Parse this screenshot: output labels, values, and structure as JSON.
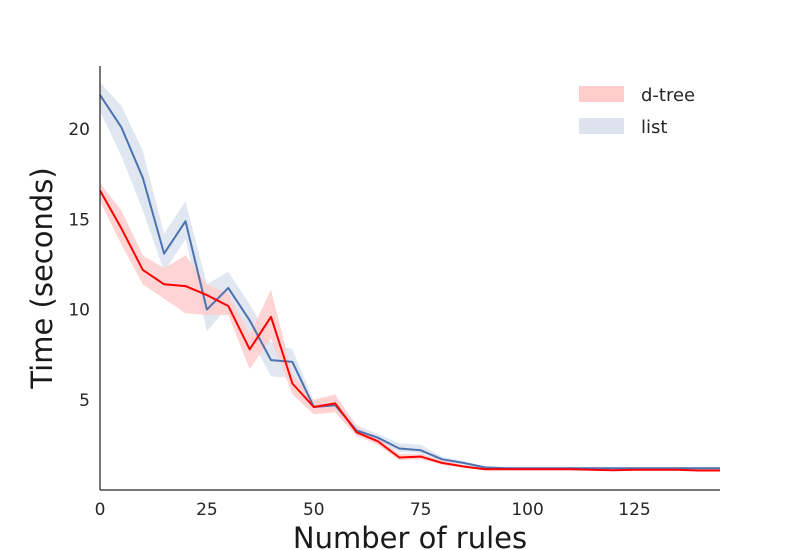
{
  "chart_data": {
    "type": "line",
    "xlabel": "Number of rules",
    "ylabel": "Time (seconds)",
    "xlim": [
      0,
      145
    ],
    "ylim": [
      0,
      23.5
    ],
    "xticks": [
      0,
      25,
      50,
      75,
      100,
      125
    ],
    "yticks": [
      5,
      10,
      15,
      20
    ],
    "legend_position": "top-right",
    "grid": false,
    "x": [
      0,
      5,
      10,
      15,
      20,
      25,
      30,
      35,
      40,
      45,
      50,
      55,
      60,
      65,
      70,
      75,
      80,
      85,
      90,
      95,
      100,
      105,
      110,
      115,
      120,
      125,
      130,
      135,
      140,
      145
    ],
    "series": [
      {
        "name": "d-tree",
        "color": "#ff0000",
        "band_color": "#ffcccc",
        "values": [
          16.6,
          14.5,
          12.2,
          11.4,
          11.3,
          10.8,
          10.2,
          7.8,
          9.6,
          5.9,
          4.6,
          4.8,
          3.2,
          2.7,
          1.8,
          1.85,
          1.5,
          1.3,
          1.15,
          1.15,
          1.15,
          1.15,
          1.15,
          1.12,
          1.1,
          1.12,
          1.12,
          1.12,
          1.08,
          1.08
        ],
        "lower": [
          16.0,
          13.6,
          11.4,
          10.6,
          9.8,
          9.7,
          9.7,
          6.7,
          8.4,
          5.3,
          4.2,
          4.3,
          3.0,
          2.5,
          1.65,
          1.7,
          1.4,
          1.25,
          1.1,
          1.1,
          1.1,
          1.1,
          1.1,
          1.08,
          1.05,
          1.07,
          1.07,
          1.07,
          1.03,
          1.03
        ],
        "upper": [
          17.0,
          15.5,
          13.0,
          12.3,
          13.0,
          11.4,
          10.9,
          8.6,
          11.1,
          6.4,
          5.0,
          5.3,
          3.5,
          2.9,
          2.0,
          2.0,
          1.65,
          1.4,
          1.25,
          1.2,
          1.2,
          1.2,
          1.2,
          1.17,
          1.15,
          1.17,
          1.17,
          1.17,
          1.13,
          1.13
        ]
      },
      {
        "name": "list",
        "color": "#4c72b0",
        "band_color": "#dce3ef",
        "values": [
          21.9,
          20.1,
          17.3,
          13.1,
          14.9,
          10.0,
          11.2,
          9.4,
          7.2,
          7.1,
          4.6,
          4.7,
          3.3,
          2.9,
          2.3,
          2.2,
          1.7,
          1.5,
          1.25,
          1.2,
          1.2,
          1.2,
          1.2,
          1.2,
          1.2,
          1.2,
          1.2,
          1.2,
          1.2,
          1.2
        ],
        "lower": [
          21.0,
          18.5,
          15.5,
          12.1,
          13.9,
          8.8,
          10.2,
          8.5,
          6.3,
          6.2,
          4.3,
          4.4,
          3.0,
          2.7,
          2.1,
          2.05,
          1.6,
          1.42,
          1.18,
          1.15,
          1.15,
          1.15,
          1.15,
          1.15,
          1.15,
          1.15,
          1.15,
          1.15,
          1.15,
          1.15
        ],
        "upper": [
          22.6,
          21.3,
          18.8,
          14.2,
          16.0,
          11.4,
          12.1,
          10.3,
          8.2,
          7.8,
          4.9,
          5.2,
          3.6,
          3.1,
          2.6,
          2.5,
          1.85,
          1.6,
          1.32,
          1.27,
          1.27,
          1.27,
          1.27,
          1.27,
          1.27,
          1.27,
          1.27,
          1.27,
          1.27,
          1.27
        ]
      }
    ]
  }
}
